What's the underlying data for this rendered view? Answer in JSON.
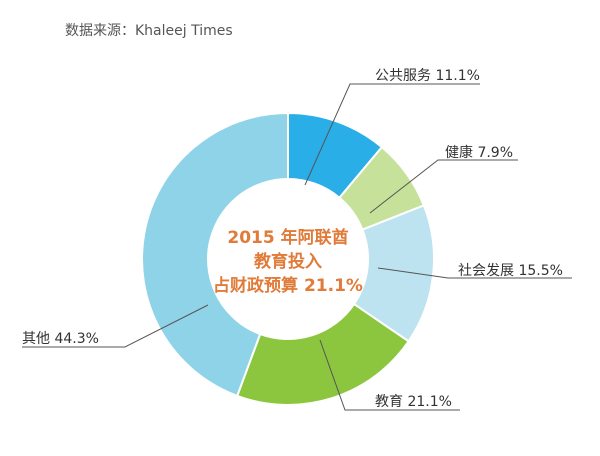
{
  "source": "数据来源：Khaleej Times",
  "chart_data": {
    "type": "pie",
    "title_lines": [
      "2015 年阿联酋",
      "教育投入",
      "占财政预算 21.1%"
    ],
    "slices": [
      {
        "name": "公共服务",
        "value": 11.1,
        "label": "公共服务 11.1%",
        "color": "#2aaee8"
      },
      {
        "name": "健康",
        "value": 7.9,
        "label": "健康 7.9%",
        "color": "#c6e29a"
      },
      {
        "name": "社会发展",
        "value": 15.5,
        "label": "社会发展 15.5%",
        "color": "#bde2f0"
      },
      {
        "name": "教育",
        "value": 21.1,
        "label": "教育 21.1%",
        "color": "#8cc63f"
      },
      {
        "name": "其他",
        "value": 44.3,
        "label": "其他 44.3%",
        "color": "#8fd3e8"
      }
    ]
  }
}
